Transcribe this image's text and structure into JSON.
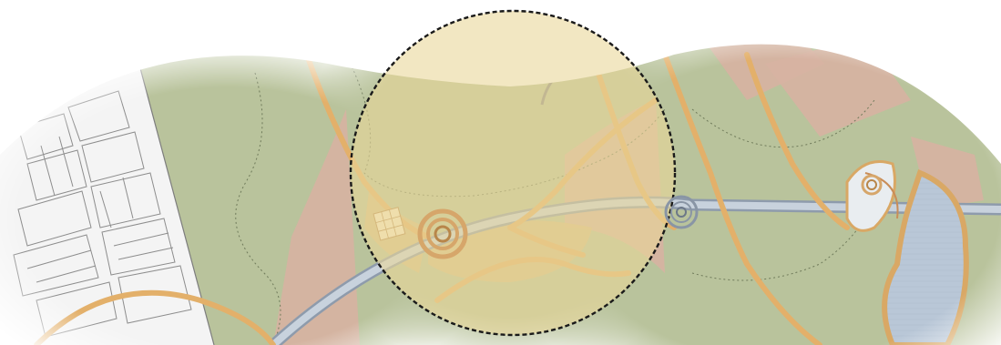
{
  "map": {
    "colors": {
      "background": "#ffffff",
      "green_area": "#b9c39c",
      "tan_area": "#d8b87f",
      "pink_area": "#d8b0a0",
      "path_orange": "#e3b06a",
      "path_outline": "#b8864a",
      "water": "#b8c6d6",
      "road": "#9aa7b6",
      "urban_block": "#f3f3f3",
      "urban_line": "#8d8d8d",
      "focus_fill": "#e9d79a",
      "focus_stroke": "#1a1a1a"
    },
    "focus_circle": {
      "style": "dashed",
      "fill_opacity": 0.6
    },
    "icons": [
      "roundabout-marker-icon",
      "roundabout-marker-icon",
      "roundabout-marker-icon",
      "building-hatch-icon"
    ]
  }
}
